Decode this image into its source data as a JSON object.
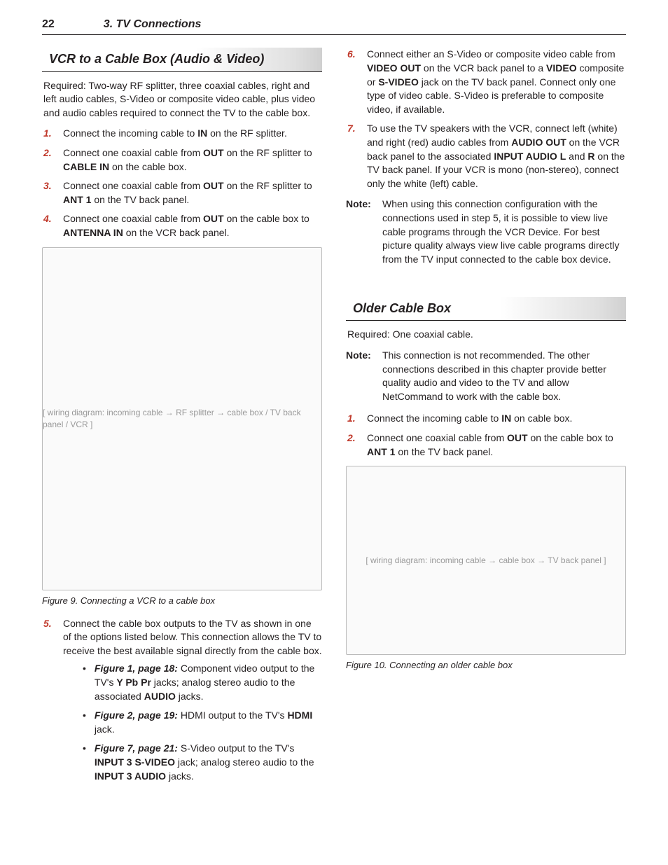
{
  "header": {
    "page_number": "22",
    "chapter": "3. TV Connections"
  },
  "left": {
    "heading": "VCR to a Cable Box (Audio & Video)",
    "required": "Required:  Two-way RF splitter, three coaxial cables, right and left audio cables, S-Video or composite video cable, plus video and audio cables required to connect the TV to the cable box.",
    "steps1": [
      {
        "n": "1.",
        "pre": "Connect the incoming cable to ",
        "b1": "IN",
        "post": " on the RF splitter."
      },
      {
        "n": "2.",
        "pre": "Connect one coaxial cable from ",
        "b1": "OUT",
        "mid": " on the RF splitter to ",
        "b2": "CABLE IN",
        "post": " on the cable box."
      },
      {
        "n": "3.",
        "pre": "Connect one coaxial cable from ",
        "b1": "OUT",
        "mid": " on the RF splitter to ",
        "b2": "ANT 1",
        "post": " on the TV back panel."
      },
      {
        "n": "4.",
        "pre": "Connect one coaxial cable from ",
        "b1": "OUT",
        "mid": " on the cable box to ",
        "b2": "ANTENNA IN",
        "post": " on the VCR back panel."
      }
    ],
    "figure9_caption": "Figure 9.  Connecting a VCR to a cable box",
    "figure9_placeholder": "[ wiring diagram: incoming cable → RF splitter → cable box / TV back panel / VCR ]",
    "step5": {
      "n": "5.",
      "text": "Connect the cable box outputs to the TV as shown in one of the options listed below.  This connection allows the TV to receive the best available signal directly from the cable box."
    },
    "bullets": [
      {
        "ref": "Figure 1, page 18:",
        "t1": "  Component video output to the TV's ",
        "b1": "Y Pb Pr",
        "t2": " jacks; analog stereo audio to the associated ",
        "b2": "AUDIO",
        "t3": " jacks."
      },
      {
        "ref": "Figure 2, page 19:",
        "t1": "  HDMI output to the TV's ",
        "b1": "HDMI",
        "t2": " jack.",
        "b2": "",
        "t3": ""
      },
      {
        "ref": "Figure 7, page 21:",
        "t1": "  S-Video output to the TV's ",
        "b1": "INPUT 3 S-VIDEO",
        "t2": " jack; analog stereo audio to the ",
        "b2": "INPUT 3 AUDIO",
        "t3": " jacks."
      }
    ]
  },
  "right": {
    "step6": {
      "n": "6.",
      "pre": "Connect either an S-Video or composite video cable from ",
      "b1": "VIDEO OUT",
      "m1": " on the VCR back panel to a ",
      "b2": "VIDEO",
      "m2": " composite or ",
      "b3": "S-VIDEO",
      "post": " jack on the TV back panel.  Connect only one type of video cable.  S-Video is preferable to composite video, if available."
    },
    "step7": {
      "n": "7.",
      "pre": "To use the TV speakers with the VCR, connect left (white) and right (red) audio cables from ",
      "b1": "AUDIO OUT",
      "m1": " on the VCR back panel to the associated ",
      "b2": "INPUT AUDIO L",
      "m2": " and ",
      "b3": "R",
      "post": " on the TV back panel.  If your VCR is mono (non-stereo), connect only the white (left) cable."
    },
    "note1": {
      "label": "Note:",
      "text": "When using this connection configuration with the connections used in step 5, it is possible to view live cable programs through the VCR Device.  For best picture quality always view live cable programs directly from the TV input connected to the cable box device."
    },
    "older_heading": "Older Cable Box",
    "older_required": "Required:  One coaxial cable.",
    "note2": {
      "label": "Note:",
      "text": "This connection is not recommended.  The other connections described in this chapter provide better quality audio and video to the TV and allow NetCommand to work with the cable box."
    },
    "older_steps": [
      {
        "n": "1.",
        "pre": "Connect the incoming cable to ",
        "b1": "IN",
        "post": " on cable box."
      },
      {
        "n": "2.",
        "pre": "Connect one coaxial cable from ",
        "b1": "OUT",
        "mid": " on the cable box to ",
        "b2": "ANT 1",
        "post": " on the TV back panel."
      }
    ],
    "figure10_placeholder": "[ wiring diagram: incoming cable → cable box → TV back panel ]",
    "figure10_caption": "Figure 10.  Connecting an older cable box"
  }
}
